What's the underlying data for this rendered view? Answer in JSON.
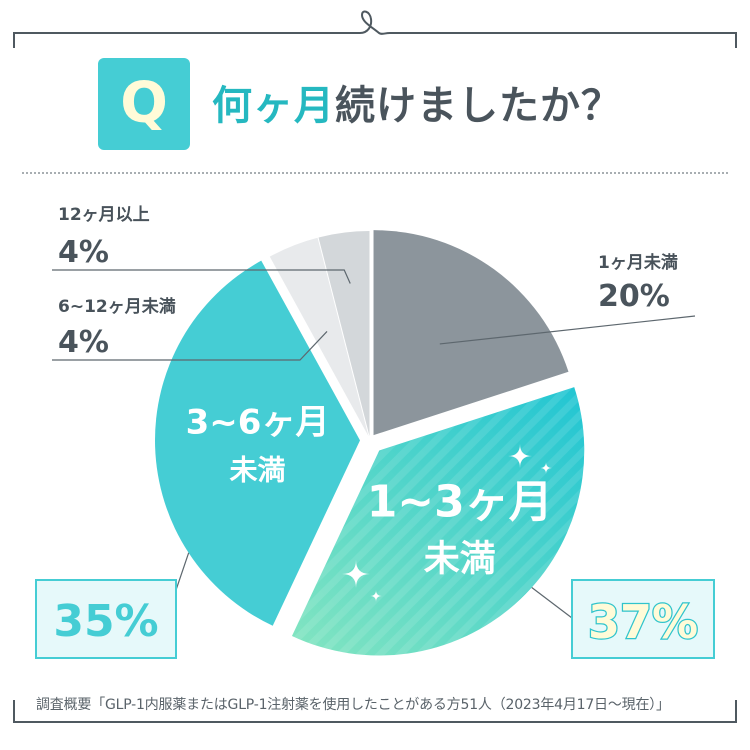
{
  "header": {
    "badge": "Q",
    "title_accent": "何ヶ月",
    "title_rest": "続けましたか？"
  },
  "footnote": "調査概要「GLP-1内服薬またはGLP-1注射薬を使用したことがある方51人（2023年4月17日～現在）」",
  "colors": {
    "accent": "#45cdd4",
    "gray_dark": "#8c959c",
    "gray_light": "#e8eaec",
    "gray_mid": "#d3d7da",
    "teal_gradient_start": "#7ee3c2",
    "teal_gradient_end": "#27c7d2"
  },
  "chart_data": {
    "type": "pie",
    "slices": [
      {
        "label": "1ヶ月未満",
        "value": 20,
        "display": "20%",
        "color": "#8c959c"
      },
      {
        "label": "1~3ヶ月未満",
        "value": 37,
        "display": "37%",
        "color": "#27c7d2",
        "inner_line1": "1~3ヶ月",
        "inner_line2": "未満"
      },
      {
        "label": "3~6ヶ月未満",
        "value": 35,
        "display": "35%",
        "color": "#45cdd4",
        "inner_line1": "3~6ヶ月",
        "inner_line2": "未満"
      },
      {
        "label": "6~12ヶ月未満",
        "value": 4,
        "display": "4%",
        "color": "#e8eaec"
      },
      {
        "label": "12ヶ月以上",
        "value": 4,
        "display": "4%",
        "color": "#d3d7da"
      }
    ]
  }
}
